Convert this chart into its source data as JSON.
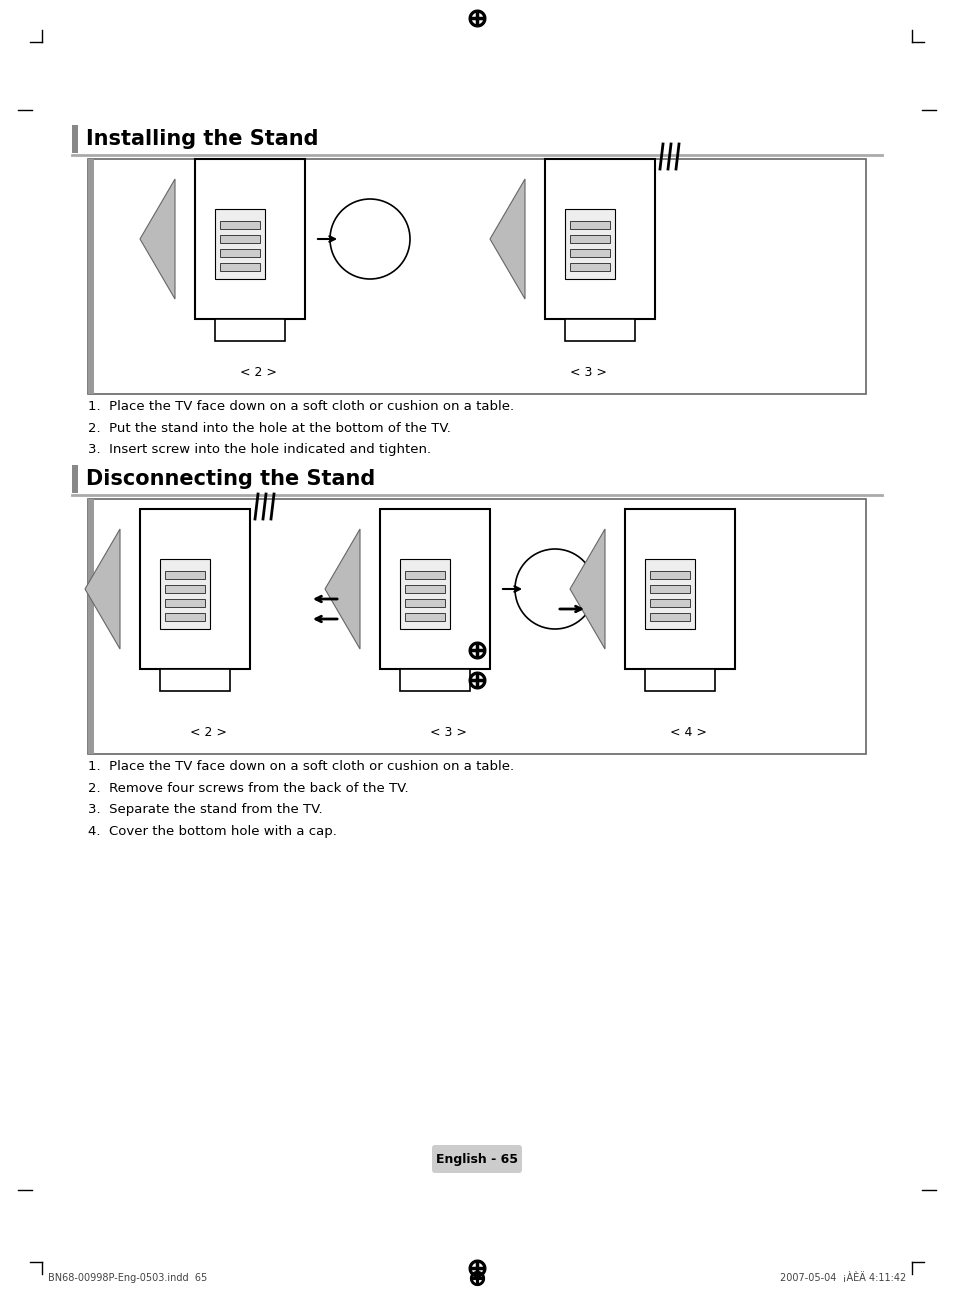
{
  "title1": "Installing the Stand",
  "title2": "Disconnecting the Stand",
  "install_steps": [
    "1.  Place the TV face down on a soft cloth or cushion on a table.",
    "2.  Put the stand into the hole at the bottom of the TV.",
    "3.  Insert screw into the hole indicated and tighten."
  ],
  "disconnect_steps": [
    "1.  Place the TV face down on a soft cloth or cushion on a table.",
    "2.  Remove four screws from the back of the TV.",
    "3.  Separate the stand from the TV.",
    "4.  Cover the bottom hole with a cap."
  ],
  "caption_install": [
    "< 2 >",
    "< 3 >"
  ],
  "caption_disconnect": [
    "< 2 >",
    "< 3 >",
    "< 4 >"
  ],
  "page_label": "English - 65",
  "footer_left": "BN68-00998P-Eng-0503.indd  65",
  "footer_right": "2007-05-04  ¡ÀÈÄ 4:11:42",
  "bg_color": "#ffffff",
  "box_bg": "#f8f8f8",
  "title_color": "#000000",
  "text_color": "#000000",
  "border_color": "#aaaaaa",
  "sidebar_color": "#888888",
  "title_bar_color": "#cccccc"
}
